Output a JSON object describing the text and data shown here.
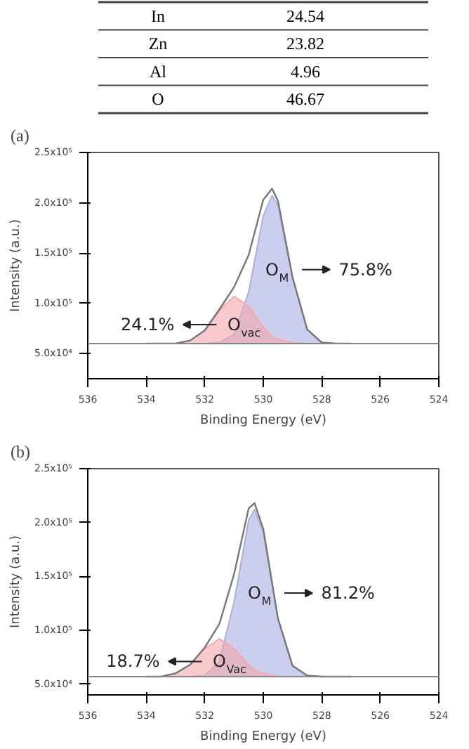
{
  "chart_data": [
    {
      "type": "other",
      "categories": [
        "In",
        "Zn",
        "Al",
        "O"
      ],
      "values": [
        24.54,
        23.82,
        4.96,
        46.67
      ],
      "data_labels": true
    },
    {
      "type": "area",
      "title": "(a)",
      "xlabel": "Binding Energy (eV)",
      "ylabel": "Intensity (a.u.)",
      "x": [
        534,
        533.5,
        533,
        532.5,
        532,
        531.5,
        531,
        530.5,
        530,
        529.7,
        529.5,
        529,
        528.5,
        528,
        527.5,
        527
      ],
      "series": [
        {
          "type": "area",
          "color": "#a9aee0",
          "values": [
            60000,
            60000,
            60000,
            60000,
            60000,
            61000,
            69000,
            111000,
            187000,
            207000,
            198000,
            125000,
            74000,
            61000,
            60000,
            60000
          ]
        },
        {
          "type": "area",
          "color": "#f4a7ae",
          "values": [
            60000,
            60000,
            60000,
            63000,
            73000,
            93000,
            107000,
            97000,
            76000,
            67000,
            64000,
            61000,
            60000,
            60000,
            60000,
            60000
          ]
        },
        {
          "type": "line",
          "color": "#777777",
          "values": [
            60000,
            60000,
            60000,
            63000,
            73000,
            94000,
            116000,
            148000,
            203000,
            214000,
            202000,
            126000,
            74000,
            61000,
            60000,
            60000
          ]
        }
      ],
      "ref_lines": [
        {
          "axis": "y",
          "value": 60000,
          "color": "#888888"
        }
      ],
      "annotations": [
        "O$_{M}$",
        "75.8%",
        "O$_{vac}$",
        "24.1%"
      ],
      "xlim": [
        536,
        524
      ],
      "xticks": [
        536,
        534,
        532,
        530,
        528,
        526,
        524
      ],
      "ylim": [
        25000,
        250000
      ],
      "yticks": [
        {
          "value": 50000,
          "label": "5.0x10⁴"
        },
        {
          "value": 100000,
          "label": "1.0x10⁵"
        },
        {
          "value": 150000,
          "label": "1.5x10⁵"
        },
        {
          "value": 200000,
          "label": "2.0x10⁵"
        },
        {
          "value": 250000,
          "label": "2.5x10⁵"
        }
      ],
      "grid": false
    },
    {
      "type": "area",
      "title": "(b)",
      "xlabel": "Binding Energy (eV)",
      "ylabel": "Intensity (a.u.)",
      "x": [
        534,
        533.5,
        533,
        532.5,
        532,
        531.5,
        531,
        530.5,
        530.3,
        530,
        529.5,
        529,
        528.5,
        528,
        527.5,
        527
      ],
      "series": [
        {
          "type": "area",
          "color": "#a9aee0",
          "values": [
            57000,
            57000,
            57000,
            57000,
            58000,
            71000,
            126000,
            202000,
            212000,
            191000,
            111000,
            67000,
            58000,
            57000,
            57000,
            57000
          ]
        },
        {
          "type": "area",
          "color": "#f4a7ae",
          "values": [
            57000,
            57000,
            60000,
            68000,
            83000,
            92000,
            83000,
            68000,
            63000,
            60000,
            57000,
            57000,
            57000,
            57000,
            57000,
            57000
          ]
        },
        {
          "type": "line",
          "color": "#777777",
          "values": [
            57000,
            57000,
            60000,
            68000,
            84000,
            106000,
            152000,
            213000,
            218000,
            194000,
            111000,
            67000,
            58000,
            57000,
            57000,
            57000
          ]
        }
      ],
      "ref_lines": [
        {
          "axis": "y",
          "value": 57000,
          "color": "#888888"
        }
      ],
      "annotations": [
        "O$_{M}$",
        "81.2%",
        "O$_{Vac}$",
        "18.7%"
      ],
      "xlim": [
        536,
        524
      ],
      "xticks": [
        536,
        534,
        532,
        530,
        528,
        526,
        524
      ],
      "ylim": [
        40000,
        250000
      ],
      "yticks": [
        {
          "value": 50000,
          "label": "5.0x10⁴"
        },
        {
          "value": 100000,
          "label": "1.0x10⁵"
        },
        {
          "value": 150000,
          "label": "1.5x10⁵"
        },
        {
          "value": 200000,
          "label": "2.0x10⁵"
        },
        {
          "value": 250000,
          "label": "2.5x10⁵"
        }
      ],
      "grid": false
    }
  ]
}
